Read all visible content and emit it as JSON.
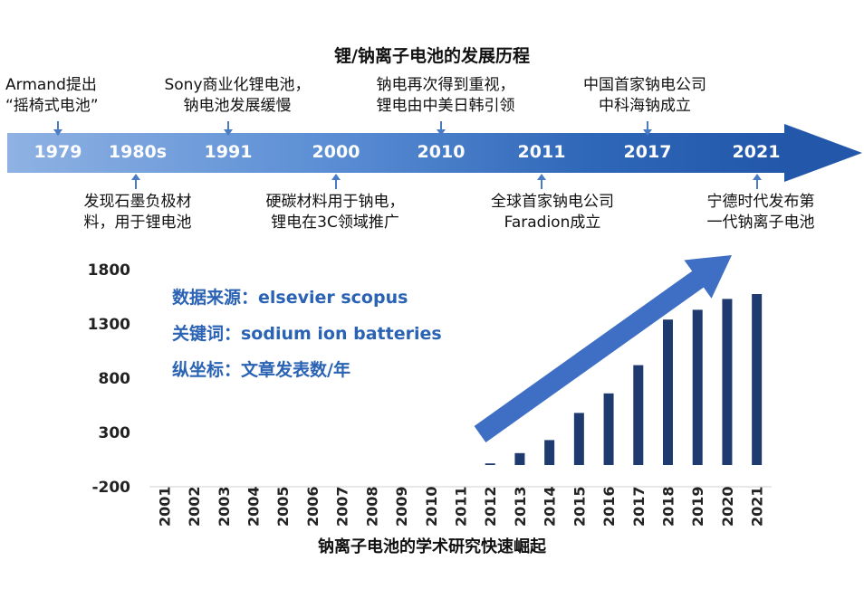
{
  "timeline": {
    "title": "锂/钠离子电池的发展历程",
    "years": [
      "1979",
      "1980s",
      "1991",
      "2000",
      "2010",
      "2011",
      "2017",
      "2021"
    ],
    "events_above": [
      {
        "line1": "Armand提出",
        "line2": "“摇椅式电池”"
      },
      {
        "line1": "Sony商业化锂电池，",
        "line2": "钠电池发展缓慢"
      },
      {
        "line1": "钠电再次得到重视，",
        "line2": "锂电由中美日韩引领"
      },
      {
        "line1": "中国首家钠电公司",
        "line2": "中科海钠成立"
      }
    ],
    "events_below": [
      {
        "line1": "发现石墨负极材",
        "line2": "料，用于锂电池"
      },
      {
        "line1": "硬碳材料用于钠电，",
        "line2": "锂电在3C领域推广"
      },
      {
        "line1": "全球首家钠电公司",
        "line2": "Faradion成立"
      },
      {
        "line1": "宁德时代发布第",
        "line2": "一代钠离子电池"
      }
    ]
  },
  "legend": {
    "source": "数据来源：elsevier scopus",
    "keyword": "关键词：sodium ion batteries",
    "yaxis_note": "纵坐标：文章发表数/年"
  },
  "caption": "钠离子电池的学术研究快速崛起",
  "colors": {
    "bar": "#1f3a6e",
    "arrow": "#3f6fc4",
    "legend_text": "#2a62b4",
    "timeline_dark": "#2257a9",
    "timeline_light": "#8fb2e3"
  },
  "chart_data": {
    "type": "bar",
    "title": "",
    "xlabel": "",
    "ylabel": "",
    "categories": [
      "2001",
      "2002",
      "2003",
      "2004",
      "2005",
      "2006",
      "2007",
      "2008",
      "2009",
      "2010",
      "2011",
      "2012",
      "2013",
      "2014",
      "2015",
      "2016",
      "2017",
      "2018",
      "2019",
      "2020",
      "2021"
    ],
    "values": [
      0,
      0,
      0,
      0,
      0,
      0,
      0,
      0,
      0,
      0,
      0,
      15,
      110,
      230,
      480,
      660,
      920,
      1340,
      1430,
      1530,
      1575
    ],
    "ylim": [
      -200,
      1800
    ],
    "yticks": [
      -200,
      300,
      800,
      1300,
      1800
    ],
    "ytick_labels": [
      "-200",
      "300",
      "800",
      "1300",
      "1800"
    ]
  }
}
